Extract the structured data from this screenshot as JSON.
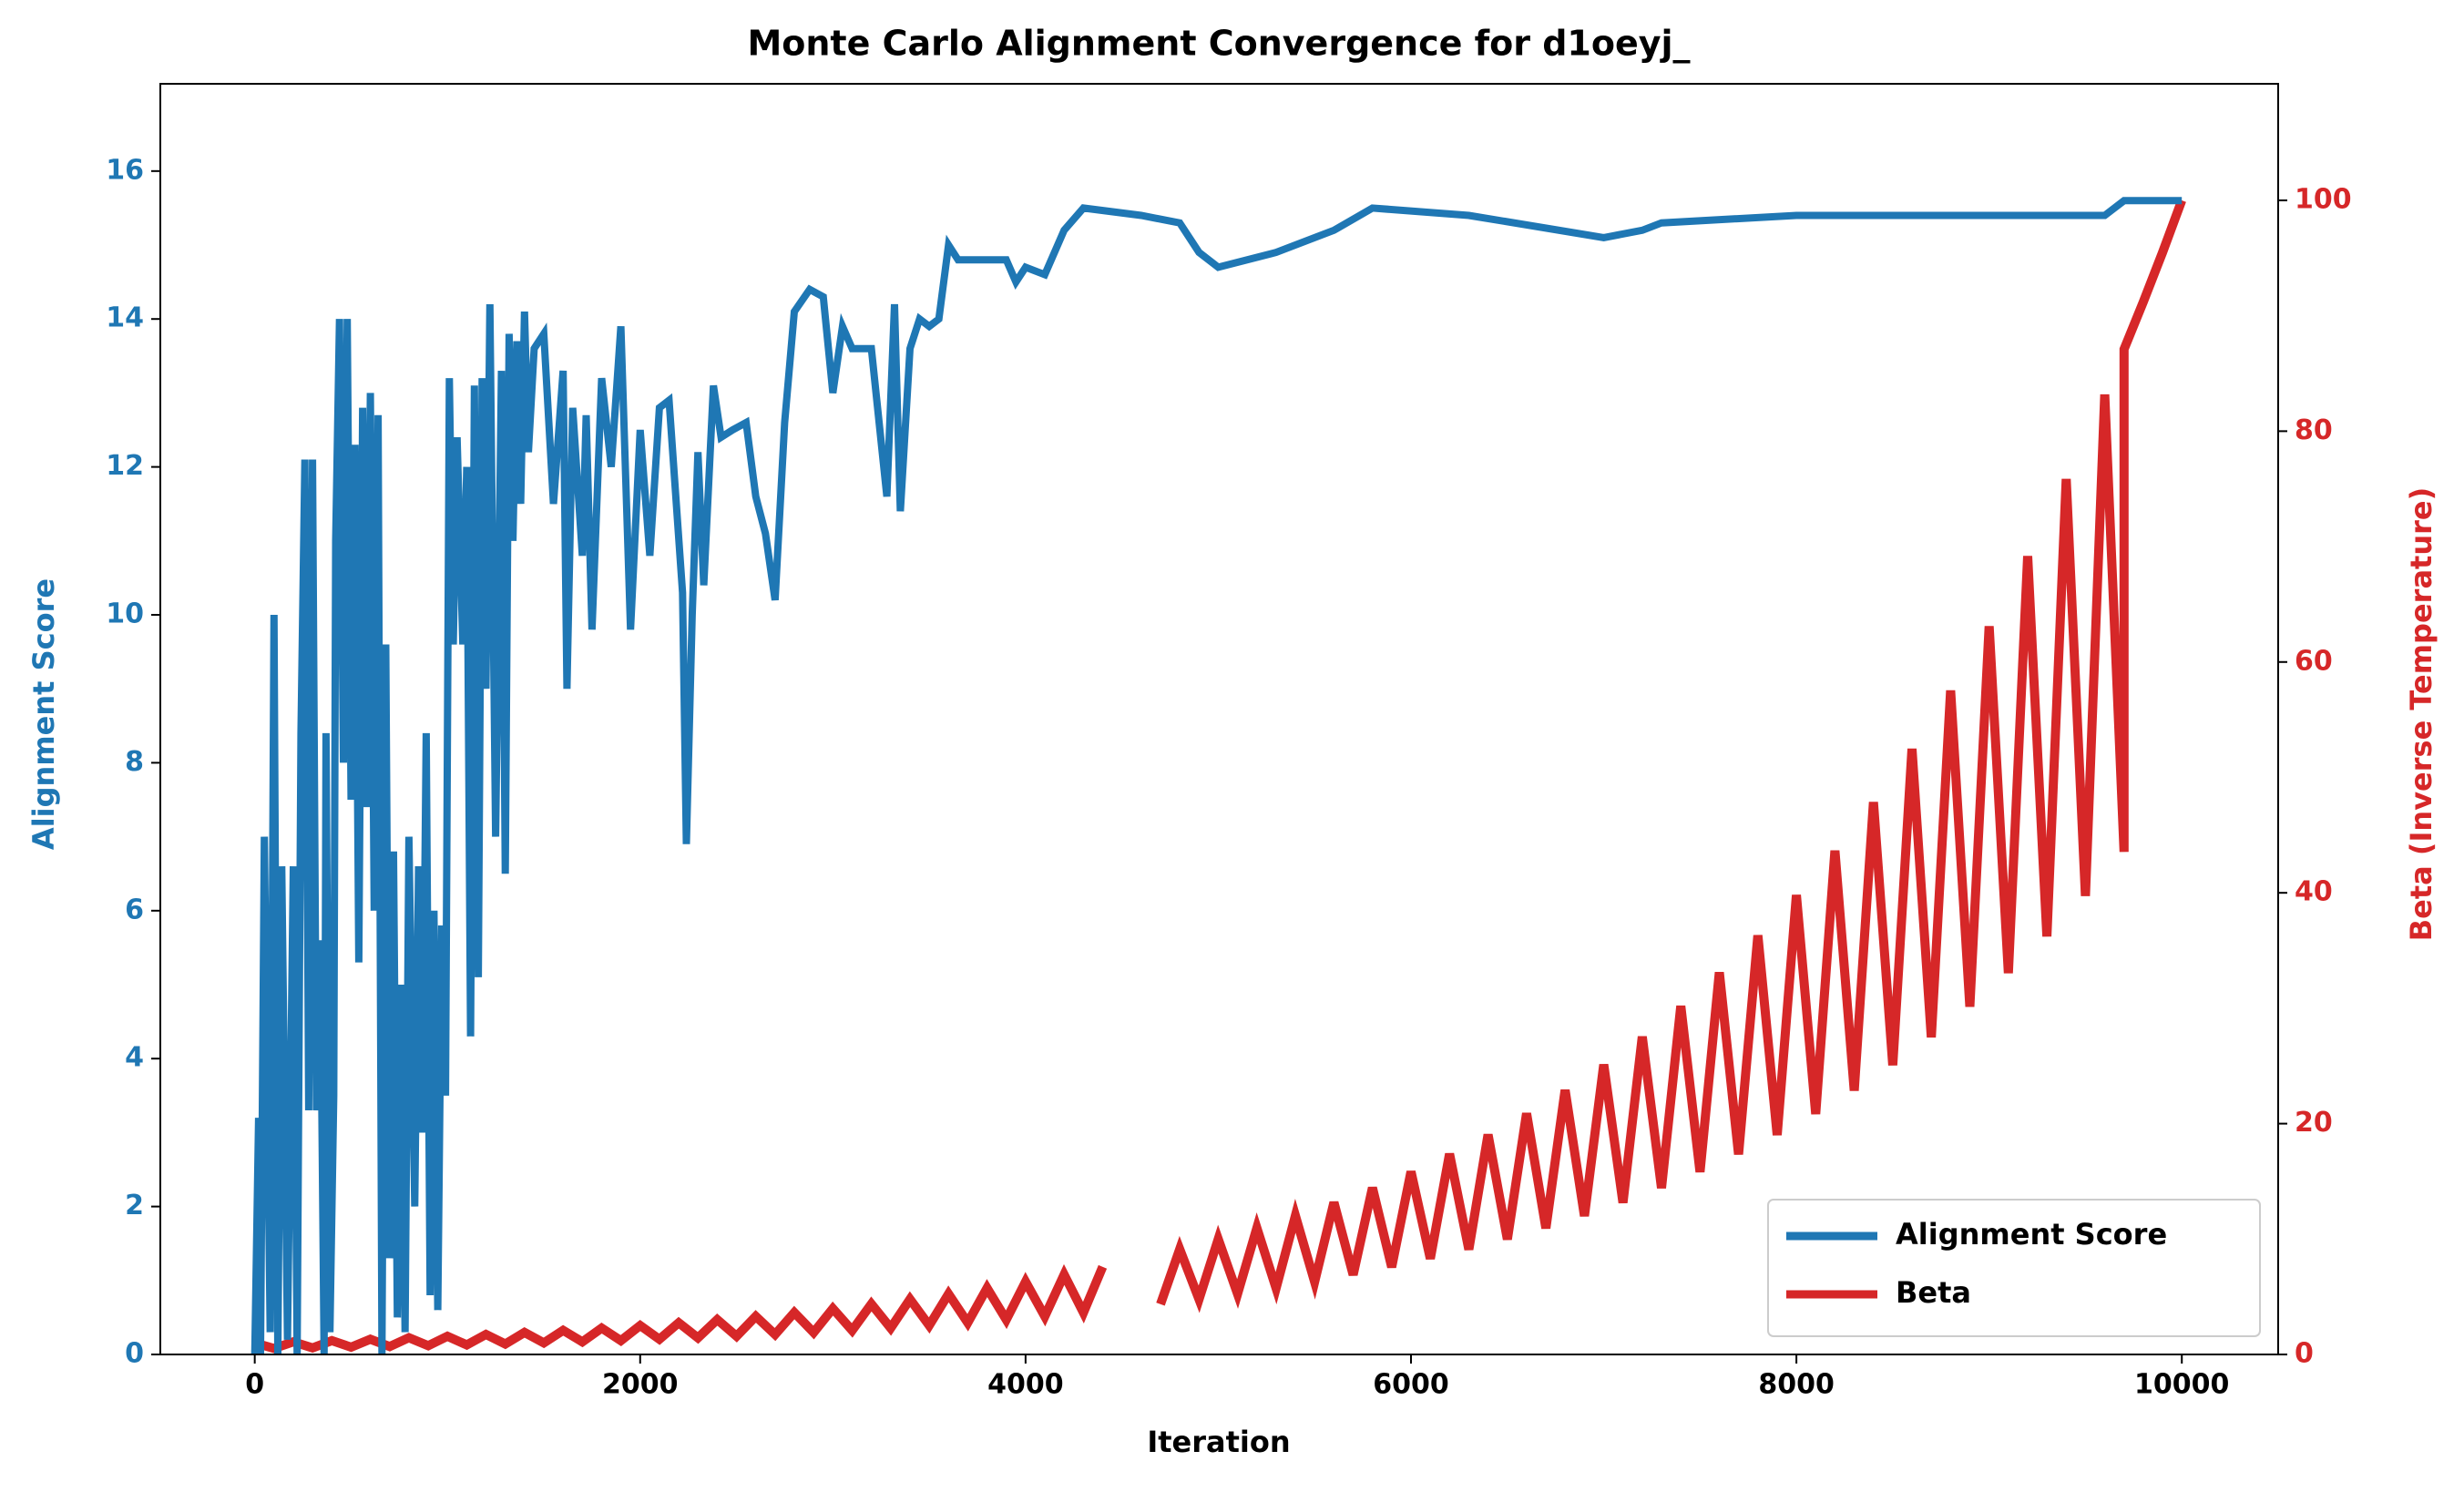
{
  "chart_data": {
    "type": "line",
    "title": "Monte Carlo Alignment Convergence for d1oeyj_",
    "x_label": "Iteration",
    "y_label": "Alignment Score",
    "y2_label": "Beta (Inverse Temperature)",
    "xlim": [
      -490,
      10500
    ],
    "xticks": [
      0,
      2000,
      4000,
      6000,
      8000,
      10000
    ],
    "ylim": [
      0,
      17.18
    ],
    "yticks": [
      0,
      2,
      4,
      6,
      8,
      10,
      12,
      14,
      16
    ],
    "y2lim": [
      0,
      110.1
    ],
    "y2ticks": [
      0,
      20,
      40,
      60,
      80,
      100
    ],
    "legend": "lower right",
    "series": [
      {
        "name": "Alignment Score",
        "color": "#1f77b4",
        "x": [
          0,
          20,
          30,
          50,
          80,
          100,
          120,
          140,
          170,
          200,
          220,
          240,
          260,
          280,
          300,
          320,
          340,
          360,
          370,
          390,
          410,
          420,
          440,
          460,
          480,
          500,
          520,
          540,
          560,
          580,
          600,
          620,
          640,
          660,
          680,
          700,
          720,
          740,
          760,
          780,
          800,
          830,
          850,
          870,
          890,
          910,
          930,
          950,
          970,
          990,
          1010,
          1030,
          1050,
          1080,
          1100,
          1120,
          1140,
          1160,
          1180,
          1200,
          1220,
          1250,
          1280,
          1300,
          1320,
          1340,
          1360,
          1380,
          1400,
          1420,
          1450,
          1500,
          1550,
          1600,
          1620,
          1650,
          1700,
          1720,
          1750,
          1800,
          1850,
          1900,
          1950,
          2000,
          2050,
          2100,
          2150,
          2220,
          2240,
          2270,
          2300,
          2330,
          2380,
          2420,
          2480,
          2550,
          2600,
          2650,
          2700,
          2750,
          2800,
          2880,
          2950,
          3000,
          3050,
          3100,
          3200,
          3280,
          3320,
          3350,
          3400,
          3450,
          3500,
          3550,
          3600,
          3650,
          3900,
          3950,
          4000,
          4100,
          4200,
          4300,
          4600,
          4800,
          4900,
          5000,
          5300,
          5600,
          5800,
          6300,
          7000,
          7200,
          7300,
          8000,
          9600,
          9700,
          10000
        ],
        "values": [
          0,
          3.2,
          0,
          7,
          0.3,
          10,
          0,
          6.6,
          0.2,
          6.6,
          0,
          8.4,
          12.1,
          3.3,
          12.1,
          3.3,
          5.6,
          0,
          8.4,
          0.3,
          3.5,
          11,
          14,
          8,
          14,
          7.5,
          12.3,
          5.3,
          12.8,
          7.4,
          13,
          6,
          12.7,
          0,
          9.6,
          1.3,
          6.8,
          0.5,
          5,
          0.3,
          7,
          2,
          6.6,
          3,
          8.4,
          0.8,
          6,
          0.6,
          5.8,
          3.5,
          13.2,
          9.6,
          12.4,
          9.6,
          12,
          4.3,
          13.1,
          5.1,
          13.2,
          9,
          14.2,
          7,
          13.3,
          6.5,
          13.8,
          11,
          13.7,
          11.5,
          14.1,
          12.2,
          13.6,
          13.8,
          11.5,
          13.3,
          9,
          12.8,
          10.8,
          12.7,
          9.8,
          13.2,
          12,
          13.9,
          9.8,
          12.5,
          10.8,
          12.8,
          12.9,
          10.3,
          6.9,
          10,
          12.2,
          10.4,
          13.1,
          12.4,
          12.5,
          12.6,
          11.6,
          11.1,
          10.2,
          12.6,
          14.1,
          14.4,
          14.3,
          13,
          13.9,
          13.6,
          13.6,
          11.6,
          14.2,
          11.4,
          13.6,
          14,
          13.9,
          14,
          15,
          14.8,
          14.8,
          14.5,
          14.7,
          14.6,
          15.2,
          15.5,
          15.4,
          15.3,
          14.9,
          14.7,
          14.9,
          15.2,
          15.5,
          15.4,
          15.1,
          15.2,
          15.3,
          15.4,
          15.4,
          15.6,
          15.6
        ]
      },
      {
        "name": "Beta",
        "color": "#d62728",
        "axis": "y2",
        "x": [
          0,
          100,
          200,
          300,
          400,
          500,
          600,
          700,
          800,
          900,
          1000,
          1100,
          1200,
          1300,
          1400,
          1500,
          1600,
          1700,
          1800,
          1900,
          2000,
          2100,
          2200,
          2300,
          2400,
          2500,
          2600,
          2700,
          2800,
          2900,
          3000,
          3100,
          3200,
          3300,
          3400,
          3500,
          3600,
          3700,
          3800,
          3900,
          4000,
          4100,
          4200,
          4300,
          4400,
          4500,
          4700,
          4800,
          4900,
          5000,
          5100,
          5200,
          5300,
          5400,
          5500,
          5600,
          5700,
          5800,
          5900,
          6000,
          6100,
          6200,
          6300,
          6400,
          6500,
          6600,
          6700,
          6800,
          6900,
          7000,
          7100,
          7200,
          7300,
          7400,
          7500,
          7600,
          7700,
          7800,
          7900,
          8000,
          8100,
          8200,
          8300,
          8400,
          8500,
          8600,
          8700,
          8800,
          8900,
          9000,
          9100,
          9200,
          9300,
          9400,
          9500,
          9600,
          9700,
          9700,
          9800,
          9900,
          10000
        ],
        "values": [
          1.0,
          0.52,
          1.1,
          0.57,
          1.2,
          0.63,
          1.32,
          0.69,
          1.45,
          0.76,
          1.58,
          0.83,
          1.74,
          0.91,
          1.91,
          1.0,
          2.09,
          1.09,
          2.29,
          1.2,
          2.51,
          1.32,
          2.75,
          1.44,
          3.02,
          1.58,
          3.31,
          1.73,
          3.63,
          1.9,
          3.98,
          2.08,
          4.37,
          2.29,
          4.79,
          2.51,
          5.25,
          2.75,
          5.75,
          3.01,
          6.31,
          3.3,
          6.92,
          3.62,
          7.59,
          null,
          4.36,
          9.12,
          4.78,
          10.0,
          5.24,
          10.96,
          5.74,
          12.02,
          6.29,
          13.18,
          6.9,
          14.45,
          7.57,
          15.85,
          8.3,
          17.38,
          9.1,
          19.05,
          9.98,
          20.89,
          10.94,
          22.91,
          12.0,
          25.12,
          13.15,
          27.54,
          14.42,
          30.2,
          15.81,
          33.11,
          17.34,
          36.31,
          19.01,
          39.81,
          20.84,
          43.65,
          22.86,
          47.86,
          25.06,
          52.48,
          27.48,
          57.54,
          30.13,
          63.1,
          33.04,
          69.18,
          36.22,
          75.86,
          39.72,
          83.18,
          43.55,
          87.1,
          91.2,
          95.5,
          100
        ]
      }
    ]
  }
}
